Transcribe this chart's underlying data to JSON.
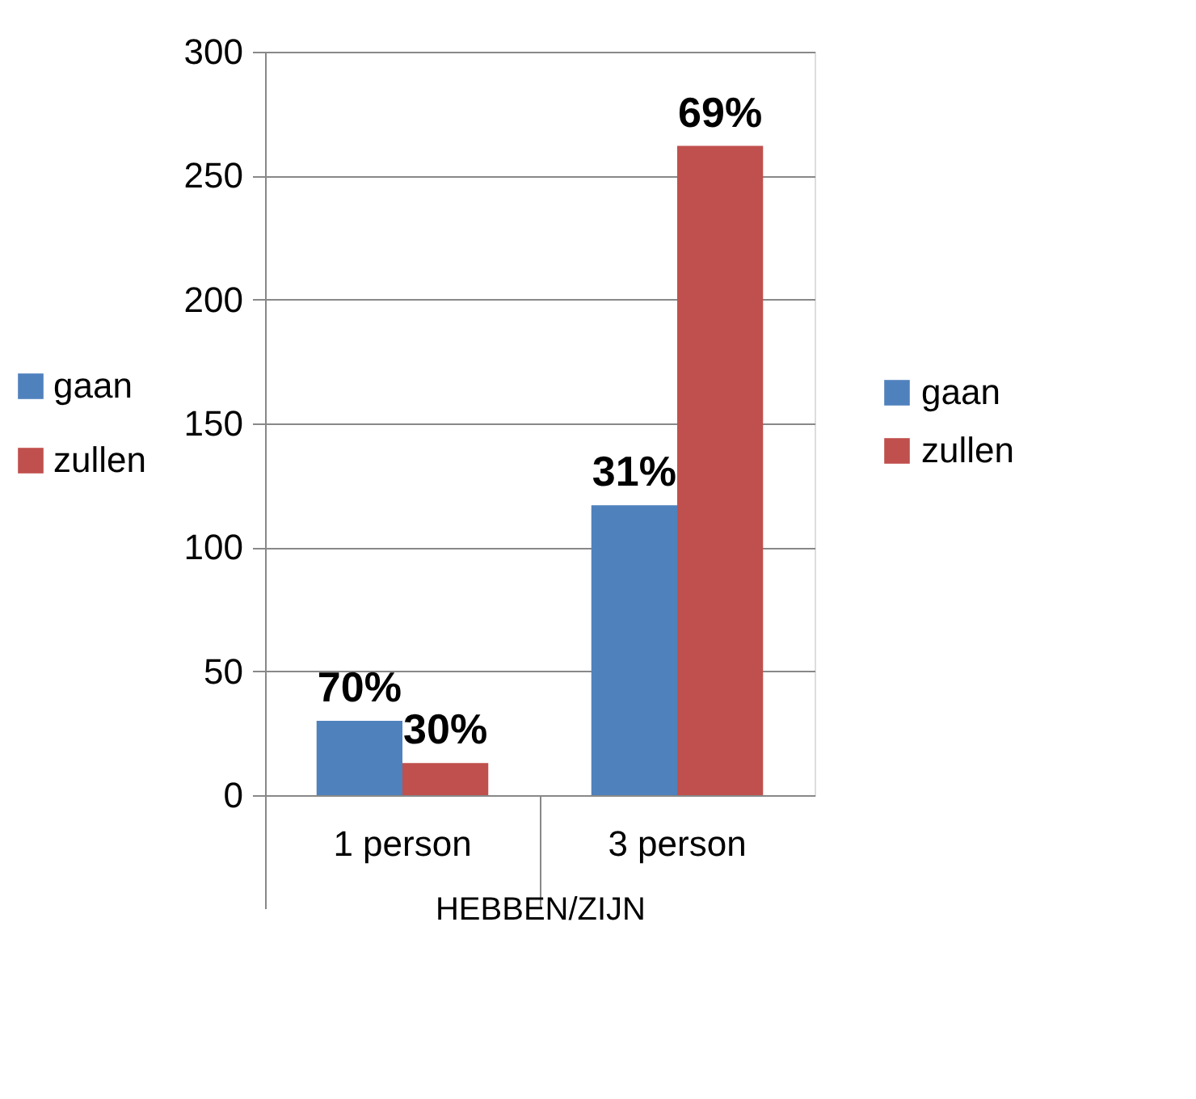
{
  "chart_data": {
    "type": "bar",
    "categories": [
      "1 person",
      "3 person"
    ],
    "xlabel": "HEBBEN/ZIJN",
    "series": [
      {
        "name": "gaan",
        "color": "#4f81bd",
        "values": [
          30,
          117
        ]
      },
      {
        "name": "zullen",
        "color": "#c0504d",
        "values": [
          13,
          262
        ]
      }
    ],
    "annotations": [
      {
        "text": "70%",
        "x": "1 person",
        "y": 30
      },
      {
        "text": "31%",
        "x": "3 person",
        "y": 117
      },
      {
        "text": "30%",
        "x": "1 person",
        "y": 13
      },
      {
        "text": "69%",
        "x": "3 person",
        "y": 262
      }
    ],
    "ylim": [
      0,
      300
    ],
    "yticks": [
      0,
      50,
      100,
      150,
      200,
      250,
      300
    ],
    "grid": "y",
    "legend": "right"
  }
}
